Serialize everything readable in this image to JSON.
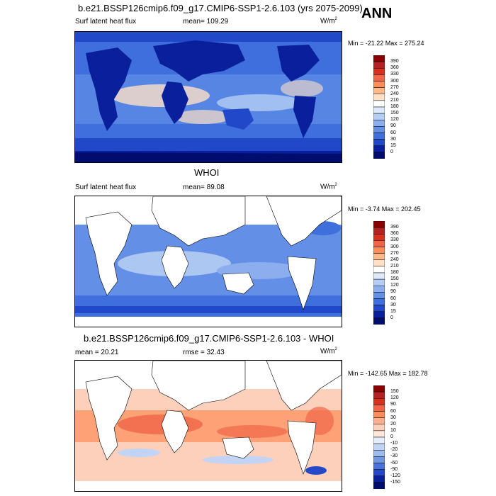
{
  "season": "ANN",
  "panels": [
    {
      "id": "model",
      "title": "b.e21.BSSP126cmip6.f09_g17.CMIP6-SSP1-2.6.103 (yrs 2075-2099)",
      "left_label": "Surf latent heat flux",
      "center_label": "mean= 109.29",
      "units_base": "W/m",
      "units_exp": "2",
      "minmax": "Min = -21.22 Max = 275.24",
      "levels": [
        "390",
        "360",
        "330",
        "300",
        "270",
        "240",
        "210",
        "180",
        "150",
        "120",
        "90",
        "60",
        "30",
        "15",
        "0"
      ],
      "colors": [
        "#8b0000",
        "#b22222",
        "#d7301f",
        "#ef6548",
        "#fc8d59",
        "#fdb98c",
        "#fde0c5",
        "#ffffff",
        "#dce9fa",
        "#b5cdf4",
        "#8caeee",
        "#638fe6",
        "#3f6fdd",
        "#2048c8",
        "#0a1f9c",
        "#000c6e"
      ]
    },
    {
      "id": "obs",
      "title": "WHOI",
      "left_label": "Surf latent heat flux",
      "center_label": "mean=  89.08",
      "units_base": "W/m",
      "units_exp": "2",
      "minmax": "Min =  -3.74 Max = 202.45",
      "levels": [
        "390",
        "360",
        "330",
        "300",
        "270",
        "240",
        "210",
        "180",
        "150",
        "120",
        "90",
        "60",
        "30",
        "15",
        "0"
      ],
      "colors": [
        "#8b0000",
        "#b22222",
        "#d7301f",
        "#ef6548",
        "#fc8d59",
        "#fdb98c",
        "#fde0c5",
        "#ffffff",
        "#dce9fa",
        "#b5cdf4",
        "#8caeee",
        "#638fe6",
        "#3f6fdd",
        "#2048c8",
        "#0a1f9c",
        "#000c6e"
      ]
    },
    {
      "id": "diff",
      "title": "b.e21.BSSP126cmip6.f09_g17.CMIP6-SSP1-2.6.103 - WHOI",
      "left_label": "mean =  20.21",
      "center_label": "rmse =  32.43",
      "units_base": "W/m",
      "units_exp": "2",
      "minmax": "Min = -142.65 Max = 182.78",
      "levels": [
        "150",
        "120",
        "90",
        "60",
        "30",
        "20",
        "10",
        "0",
        "-10",
        "-20",
        "-30",
        "-60",
        "-90",
        "-120",
        "-150"
      ],
      "colors": [
        "#8b0000",
        "#b22222",
        "#d7301f",
        "#ef6548",
        "#fc8d59",
        "#fcae91",
        "#fdd0bc",
        "#fee8dc",
        "#e4edfb",
        "#c2d4f5",
        "#9fbbee",
        "#7196e4",
        "#4a73da",
        "#2448c6",
        "#0a1f9c",
        "#000c6e"
      ]
    }
  ],
  "colors": {
    "land_fill": "#ffffff",
    "ocean_model_base": "#3f6fdd",
    "ocean_obs_base": "#638fe6",
    "ocean_diff_base": "#fdb98c"
  }
}
